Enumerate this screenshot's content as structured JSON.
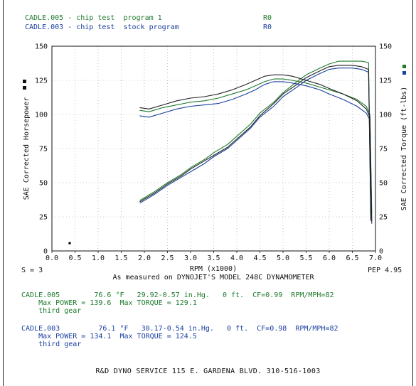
{
  "header": {
    "run1": {
      "name": "CADLE.005 - chip test  program 1",
      "code": "R0",
      "color": "#1f7a2e"
    },
    "run2": {
      "name": "CADLE.003 - chip test  stock program",
      "code": "R0",
      "color": "#1a3f9e"
    }
  },
  "chart_data": {
    "type": "line",
    "xlabel": "RPM (x1000)",
    "ylabel_left": "SAE Corrected Horsepower",
    "ylabel_right": "SAE Corrected Torque (ft-lbs)",
    "xlim": [
      0,
      7.0
    ],
    "ylim": [
      0,
      150
    ],
    "x_ticks": [
      "0.0",
      "0.5",
      "1.0",
      "1.5",
      "2.0",
      "2.5",
      "3.0",
      "3.5",
      "4.0",
      "4.5",
      "5.0",
      "5.5",
      "6.0",
      "6.5",
      "7.0"
    ],
    "y_ticks_left": [
      "0",
      "25",
      "50",
      "75",
      "100",
      "125",
      "150"
    ],
    "y_ticks_right": [
      "0",
      "25",
      "50",
      "75",
      "100",
      "125",
      "150"
    ],
    "grid": true,
    "series": [
      {
        "name": "CADLE.005",
        "metric": "power",
        "color": "#1f7a2e",
        "x": [
          1.9,
          2.2,
          2.5,
          2.8,
          3.0,
          3.3,
          3.5,
          3.8,
          4.0,
          4.3,
          4.5,
          4.8,
          5.0,
          5.3,
          5.5,
          5.8,
          6.0,
          6.2,
          6.5,
          6.7,
          6.85,
          6.9
        ],
        "y": [
          37,
          43,
          50,
          56,
          61,
          67,
          72,
          78,
          84,
          93,
          101,
          109,
          116,
          124,
          129,
          134,
          137,
          139,
          139,
          139,
          138,
          25
        ]
      },
      {
        "name": "CADLE.005",
        "metric": "torque",
        "color": "#1f7a2e",
        "x": [
          1.9,
          2.1,
          2.4,
          2.7,
          3.0,
          3.3,
          3.6,
          3.9,
          4.2,
          4.4,
          4.6,
          4.8,
          5.0,
          5.2,
          5.5,
          5.8,
          6.0,
          6.3,
          6.6,
          6.8,
          6.88,
          6.92
        ],
        "y": [
          103,
          102,
          105,
          107,
          109,
          110,
          112,
          115,
          118,
          121,
          124,
          126,
          126,
          125,
          123,
          120,
          118,
          115,
          111,
          106,
          100,
          28
        ]
      },
      {
        "name": "CADLE.003",
        "metric": "power",
        "color": "#1a3f9e",
        "x": [
          1.9,
          2.2,
          2.5,
          2.8,
          3.0,
          3.3,
          3.5,
          3.8,
          4.0,
          4.3,
          4.5,
          4.8,
          5.0,
          5.3,
          5.5,
          5.8,
          6.0,
          6.2,
          6.5,
          6.7,
          6.85,
          6.9
        ],
        "y": [
          35,
          41,
          48,
          54,
          58,
          64,
          69,
          75,
          81,
          90,
          98,
          106,
          113,
          120,
          125,
          130,
          133,
          134,
          134,
          133,
          131,
          22
        ]
      },
      {
        "name": "CADLE.003",
        "metric": "torque",
        "color": "#1a3f9e",
        "x": [
          1.9,
          2.1,
          2.4,
          2.7,
          3.0,
          3.3,
          3.6,
          3.9,
          4.2,
          4.4,
          4.6,
          4.8,
          5.0,
          5.2,
          5.5,
          5.8,
          6.0,
          6.3,
          6.6,
          6.8,
          6.88,
          6.92
        ],
        "y": [
          99,
          98,
          101,
          104,
          106,
          107,
          108,
          111,
          115,
          118,
          122,
          124,
          124,
          123,
          121,
          118,
          115,
          111,
          106,
          101,
          96,
          22
        ]
      },
      {
        "name": "CADLE.005",
        "metric": "power-torque-envelope",
        "color": "#222222",
        "x": [
          1.9,
          2.1,
          2.4,
          2.7,
          3.0,
          3.3,
          3.6,
          3.9,
          4.2,
          4.4,
          4.6,
          4.8,
          5.0,
          5.2,
          5.5,
          5.8,
          6.0,
          6.3,
          6.6,
          6.8,
          6.88,
          6.92
        ],
        "y": [
          105,
          104,
          107,
          110,
          112,
          113,
          115,
          118,
          122,
          125,
          128,
          129,
          129,
          128,
          125,
          122,
          119,
          115,
          110,
          104,
          98,
          20
        ]
      },
      {
        "name": "CADLE.003",
        "metric": "power-envelope",
        "color": "#222222",
        "x": [
          1.9,
          2.2,
          2.5,
          2.8,
          3.0,
          3.3,
          3.5,
          3.8,
          4.0,
          4.3,
          4.5,
          4.8,
          5.0,
          5.3,
          5.5,
          5.8,
          6.0,
          6.2,
          6.5,
          6.7,
          6.85,
          6.9
        ],
        "y": [
          36,
          42,
          49,
          55,
          60,
          66,
          70,
          76,
          82,
          91,
          99,
          108,
          115,
          122,
          127,
          132,
          135,
          136,
          136,
          135,
          133,
          23
        ]
      }
    ]
  },
  "axis_notes": {
    "smoothing": "S = 3",
    "pep": "PEP 4.95",
    "dyno": "As measured on DYNOJET'S MODEL 248C DYNAMOMETER"
  },
  "runs_info": [
    {
      "line1": "CADLE.005        76.6 °F   29.92-0.57 in.Hg.   0 ft.  CF=0.99  RPM/MPH=82",
      "line2": "    Max POWER = 139.6  Max TORQUE = 129.1",
      "line3": "    third gear",
      "color": "#1f7a2e"
    },
    {
      "line1": "CADLE.003         76.1 °F   30.17-0.54 in.Hg.   0 ft.  CF=0.98  RPM/MPH=82",
      "line2": "    Max POWER = 134.1  Max TORQUE = 124.5",
      "line3": "    third gear",
      "color": "#1a3f9e"
    }
  ],
  "footer": "R&D DYNO SERVICE 115 E. GARDENA BLVD.  310-516-1003"
}
